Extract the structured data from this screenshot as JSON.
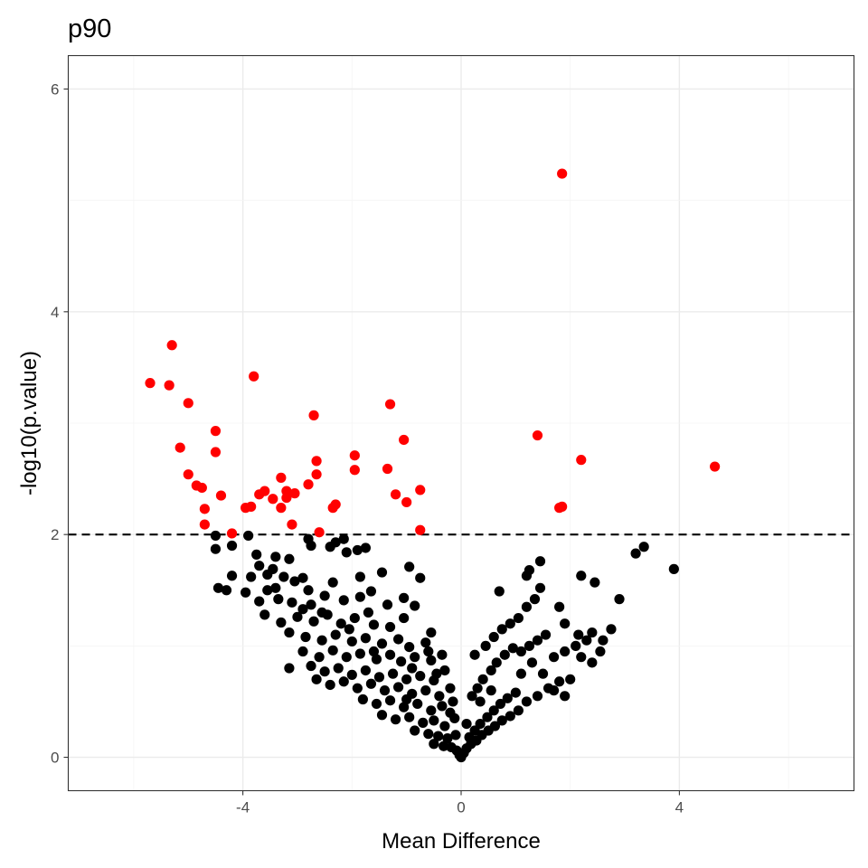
{
  "chart_data": {
    "type": "scatter",
    "title": "p90",
    "xlabel": "Mean Difference",
    "ylabel": "-log10(p.value)",
    "xlim": [
      -7.2,
      7.2
    ],
    "ylim": [
      -0.3,
      6.3
    ],
    "x_ticks": [
      -4,
      0,
      4
    ],
    "x_tick_labels": [
      "-4",
      "0",
      "4"
    ],
    "y_ticks": [
      0,
      2,
      4,
      6
    ],
    "y_tick_labels": [
      "0",
      "2",
      "4",
      "6"
    ],
    "threshold": 2,
    "grid": true,
    "legend": "none",
    "colors": {
      "significant": "#ff0000",
      "not_significant": "#000000",
      "threshold_line": "#000000",
      "grid_major": "#ebebeb",
      "grid_minor": "#f4f4f4",
      "panel_border": "#333333"
    },
    "series": [
      {
        "points": [
          [
            1.85,
            5.24
          ],
          [
            -5.3,
            3.7
          ],
          [
            -3.8,
            3.42
          ],
          [
            -5.7,
            3.36
          ],
          [
            -5.35,
            3.34
          ],
          [
            -5.0,
            3.18
          ],
          [
            -1.3,
            3.17
          ],
          [
            -2.7,
            3.07
          ],
          [
            -4.5,
            2.93
          ],
          [
            -1.05,
            2.85
          ],
          [
            1.4,
            2.89
          ],
          [
            -5.15,
            2.78
          ],
          [
            -4.5,
            2.74
          ],
          [
            -1.95,
            2.71
          ],
          [
            2.2,
            2.67
          ],
          [
            -2.65,
            2.66
          ],
          [
            4.65,
            2.61
          ],
          [
            -1.35,
            2.59
          ],
          [
            -1.95,
            2.58
          ],
          [
            -5.0,
            2.54
          ],
          [
            -2.65,
            2.54
          ],
          [
            -3.3,
            2.51
          ],
          [
            -2.8,
            2.45
          ],
          [
            -4.85,
            2.44
          ],
          [
            -4.75,
            2.42
          ],
          [
            -3.6,
            2.39
          ],
          [
            -0.75,
            2.4
          ],
          [
            -3.2,
            2.39
          ],
          [
            -3.7,
            2.36
          ],
          [
            -3.05,
            2.37
          ],
          [
            -4.4,
            2.35
          ],
          [
            -1.2,
            2.36
          ],
          [
            -3.45,
            2.32
          ],
          [
            -3.2,
            2.33
          ],
          [
            -1.0,
            2.29
          ],
          [
            -2.3,
            2.27
          ],
          [
            -3.3,
            2.24
          ],
          [
            -2.35,
            2.24
          ],
          [
            -3.85,
            2.25
          ],
          [
            -3.95,
            2.24
          ],
          [
            1.8,
            2.24
          ],
          [
            1.85,
            2.25
          ],
          [
            -4.7,
            2.23
          ],
          [
            -3.1,
            2.09
          ],
          [
            -4.7,
            2.09
          ],
          [
            -0.75,
            2.04
          ],
          [
            -2.6,
            2.02
          ],
          [
            -4.2,
            2.01
          ]
        ]
      },
      {
        "points": [
          [
            -3.9,
            1.99
          ],
          [
            -4.5,
            1.99
          ],
          [
            -2.15,
            1.96
          ],
          [
            -2.3,
            1.93
          ],
          [
            -2.8,
            1.96
          ],
          [
            -2.75,
            1.9
          ],
          [
            -1.9,
            1.86
          ],
          [
            -2.4,
            1.89
          ],
          [
            -4.5,
            1.87
          ],
          [
            -4.2,
            1.9
          ],
          [
            -3.75,
            1.82
          ],
          [
            -3.4,
            1.8
          ],
          [
            -3.15,
            1.78
          ],
          [
            -2.1,
            1.84
          ],
          [
            -1.75,
            1.88
          ],
          [
            -3.7,
            1.72
          ],
          [
            -3.45,
            1.69
          ],
          [
            -3.55,
            1.64
          ],
          [
            -3.85,
            1.62
          ],
          [
            -4.2,
            1.63
          ],
          [
            -3.25,
            1.62
          ],
          [
            -2.9,
            1.61
          ],
          [
            -3.05,
            1.58
          ],
          [
            -2.35,
            1.57
          ],
          [
            -1.85,
            1.62
          ],
          [
            -1.45,
            1.66
          ],
          [
            -0.95,
            1.71
          ],
          [
            -0.75,
            1.61
          ],
          [
            -4.45,
            1.52
          ],
          [
            -4.3,
            1.5
          ],
          [
            -3.95,
            1.48
          ],
          [
            -3.7,
            1.4
          ],
          [
            -3.55,
            1.5
          ],
          [
            -3.35,
            1.42
          ],
          [
            -3.1,
            1.39
          ],
          [
            -2.9,
            1.33
          ],
          [
            -2.75,
            1.37
          ],
          [
            -2.5,
            1.45
          ],
          [
            -2.15,
            1.41
          ],
          [
            -1.85,
            1.44
          ],
          [
            -1.65,
            1.49
          ],
          [
            -1.35,
            1.37
          ],
          [
            -1.05,
            1.43
          ],
          [
            -0.85,
            1.36
          ],
          [
            -3.6,
            1.28
          ],
          [
            -3.3,
            1.21
          ],
          [
            -3.0,
            1.26
          ],
          [
            -2.7,
            1.22
          ],
          [
            -2.45,
            1.28
          ],
          [
            -2.2,
            1.2
          ],
          [
            -1.95,
            1.25
          ],
          [
            -1.6,
            1.19
          ],
          [
            -1.3,
            1.17
          ],
          [
            -1.05,
            1.25
          ],
          [
            -0.55,
            1.12
          ],
          [
            -3.15,
            1.12
          ],
          [
            -2.85,
            1.08
          ],
          [
            -2.55,
            1.05
          ],
          [
            -2.3,
            1.1
          ],
          [
            -2.0,
            1.04
          ],
          [
            -1.75,
            1.07
          ],
          [
            -1.45,
            1.02
          ],
          [
            -1.15,
            1.06
          ],
          [
            -0.95,
            0.99
          ],
          [
            -0.65,
            1.03
          ],
          [
            -2.9,
            0.95
          ],
          [
            -2.6,
            0.9
          ],
          [
            -2.35,
            0.96
          ],
          [
            -2.1,
            0.9
          ],
          [
            -1.85,
            0.93
          ],
          [
            -1.55,
            0.88
          ],
          [
            -1.3,
            0.92
          ],
          [
            -1.1,
            0.86
          ],
          [
            -0.85,
            0.9
          ],
          [
            -0.55,
            0.87
          ],
          [
            -0.35,
            0.92
          ],
          [
            -3.15,
            0.8
          ],
          [
            -2.75,
            0.82
          ],
          [
            -2.5,
            0.77
          ],
          [
            -2.25,
            0.8
          ],
          [
            -2.0,
            0.74
          ],
          [
            -1.75,
            0.78
          ],
          [
            -1.5,
            0.72
          ],
          [
            -1.25,
            0.75
          ],
          [
            -1.0,
            0.7
          ],
          [
            -0.75,
            0.73
          ],
          [
            -0.5,
            0.69
          ],
          [
            -0.3,
            0.78
          ],
          [
            -2.65,
            0.7
          ],
          [
            -2.4,
            0.65
          ],
          [
            -2.15,
            0.68
          ],
          [
            -1.9,
            0.62
          ],
          [
            -1.65,
            0.66
          ],
          [
            -1.4,
            0.6
          ],
          [
            -1.15,
            0.63
          ],
          [
            -0.9,
            0.57
          ],
          [
            -0.65,
            0.6
          ],
          [
            -0.4,
            0.55
          ],
          [
            -0.2,
            0.62
          ],
          [
            -1.8,
            0.52
          ],
          [
            -1.55,
            0.48
          ],
          [
            -1.3,
            0.51
          ],
          [
            -1.05,
            0.45
          ],
          [
            -0.8,
            0.48
          ],
          [
            -0.55,
            0.42
          ],
          [
            -0.35,
            0.46
          ],
          [
            -0.15,
            0.5
          ],
          [
            -1.45,
            0.38
          ],
          [
            -1.2,
            0.34
          ],
          [
            -0.95,
            0.36
          ],
          [
            -0.7,
            0.31
          ],
          [
            -0.5,
            0.33
          ],
          [
            -0.3,
            0.28
          ],
          [
            -0.12,
            0.35
          ],
          [
            -0.85,
            0.24
          ],
          [
            -0.6,
            0.21
          ],
          [
            -0.42,
            0.19
          ],
          [
            -0.25,
            0.17
          ],
          [
            -0.1,
            0.2
          ],
          [
            -0.5,
            0.12
          ],
          [
            -0.32,
            0.1
          ],
          [
            -0.18,
            0.09
          ],
          [
            -0.08,
            0.06
          ],
          [
            -0.03,
            0.02
          ],
          [
            0.0,
            0.0
          ],
          [
            0.05,
            0.04
          ],
          [
            0.1,
            0.08
          ],
          [
            0.18,
            0.12
          ],
          [
            0.28,
            0.15
          ],
          [
            0.38,
            0.2
          ],
          [
            0.5,
            0.24
          ],
          [
            0.62,
            0.28
          ],
          [
            0.75,
            0.33
          ],
          [
            0.9,
            0.37
          ],
          [
            1.05,
            0.42
          ],
          [
            0.15,
            0.18
          ],
          [
            0.25,
            0.24
          ],
          [
            0.35,
            0.3
          ],
          [
            0.48,
            0.36
          ],
          [
            0.6,
            0.42
          ],
          [
            0.72,
            0.48
          ],
          [
            0.85,
            0.53
          ],
          [
            1.0,
            0.58
          ],
          [
            1.2,
            0.5
          ],
          [
            1.4,
            0.55
          ],
          [
            1.6,
            0.62
          ],
          [
            1.8,
            0.68
          ],
          [
            2.0,
            0.7
          ],
          [
            2.2,
            0.9
          ],
          [
            2.4,
            0.85
          ],
          [
            0.2,
            0.55
          ],
          [
            0.3,
            0.62
          ],
          [
            0.4,
            0.7
          ],
          [
            0.55,
            0.78
          ],
          [
            0.65,
            0.85
          ],
          [
            0.8,
            0.92
          ],
          [
            0.95,
            0.98
          ],
          [
            1.1,
            0.95
          ],
          [
            1.25,
            1.0
          ],
          [
            1.4,
            1.05
          ],
          [
            1.55,
            1.1
          ],
          [
            1.7,
            0.9
          ],
          [
            1.9,
            0.95
          ],
          [
            2.1,
            1.0
          ],
          [
            2.3,
            1.05
          ],
          [
            0.25,
            0.92
          ],
          [
            0.45,
            1.0
          ],
          [
            0.6,
            1.08
          ],
          [
            0.75,
            1.15
          ],
          [
            0.9,
            1.2
          ],
          [
            1.05,
            1.25
          ],
          [
            1.2,
            1.35
          ],
          [
            1.35,
            1.42
          ],
          [
            1.8,
            1.35
          ],
          [
            2.15,
            1.1
          ],
          [
            2.4,
            1.12
          ],
          [
            2.6,
            1.05
          ],
          [
            2.75,
            1.15
          ],
          [
            2.9,
            1.42
          ],
          [
            0.7,
            1.49
          ],
          [
            1.2,
            1.63
          ],
          [
            1.45,
            1.52
          ],
          [
            1.45,
            1.76
          ],
          [
            1.25,
            1.68
          ],
          [
            2.2,
            1.63
          ],
          [
            2.45,
            1.57
          ],
          [
            3.2,
            1.83
          ],
          [
            3.35,
            1.89
          ],
          [
            3.9,
            1.69
          ],
          [
            1.9,
            1.2
          ],
          [
            2.55,
            0.95
          ],
          [
            1.5,
            0.75
          ],
          [
            1.7,
            0.6
          ],
          [
            1.9,
            0.55
          ],
          [
            0.35,
            0.5
          ],
          [
            -0.9,
            0.8
          ],
          [
            -1.6,
            0.95
          ],
          [
            -2.05,
            1.15
          ],
          [
            -2.55,
            1.3
          ],
          [
            -3.4,
            1.52
          ],
          [
            -2.8,
            1.5
          ],
          [
            -1.7,
            1.3
          ],
          [
            -0.6,
            0.95
          ],
          [
            -0.45,
            0.75
          ],
          [
            -1.0,
            0.52
          ],
          [
            -0.2,
            0.4
          ],
          [
            0.1,
            0.3
          ],
          [
            0.55,
            0.6
          ],
          [
            1.1,
            0.75
          ],
          [
            1.3,
            0.85
          ]
        ]
      }
    ]
  }
}
